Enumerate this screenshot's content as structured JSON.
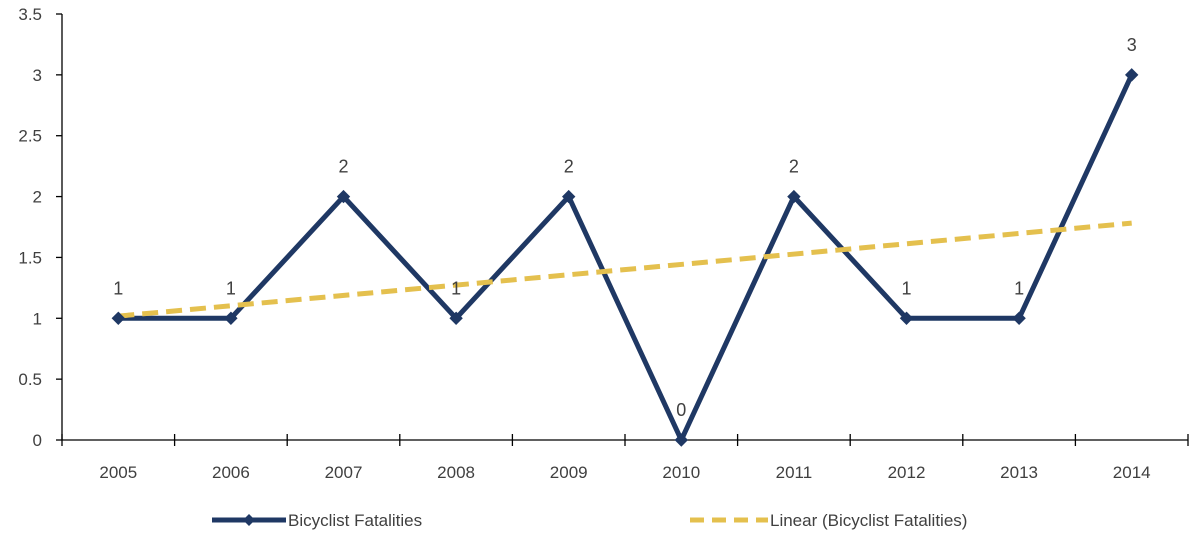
{
  "chart_data": {
    "type": "line",
    "categories": [
      "2005",
      "2006",
      "2007",
      "2008",
      "2009",
      "2010",
      "2011",
      "2012",
      "2013",
      "2014"
    ],
    "series": [
      {
        "name": "Bicyclist Fatalities",
        "values": [
          1,
          1,
          2,
          1,
          2,
          0,
          2,
          1,
          1,
          3
        ],
        "color": "#1f3864",
        "marker": "diamond"
      },
      {
        "name": "Linear (Bicyclist Fatalities)",
        "values": [
          1.018,
          1.103,
          1.188,
          1.273,
          1.358,
          1.442,
          1.527,
          1.612,
          1.697,
          1.782
        ],
        "color": "#e4c04e",
        "style": "dashed"
      }
    ],
    "data_labels": [
      "1",
      "1",
      "2",
      "1",
      "2",
      "0",
      "2",
      "1",
      "1",
      "3"
    ],
    "y_ticks": [
      "0",
      "0.5",
      "1",
      "1.5",
      "2",
      "2.5",
      "3",
      "3.5"
    ],
    "ylim": [
      0,
      3.5
    ],
    "grid": false,
    "legend_position": "bottom"
  }
}
